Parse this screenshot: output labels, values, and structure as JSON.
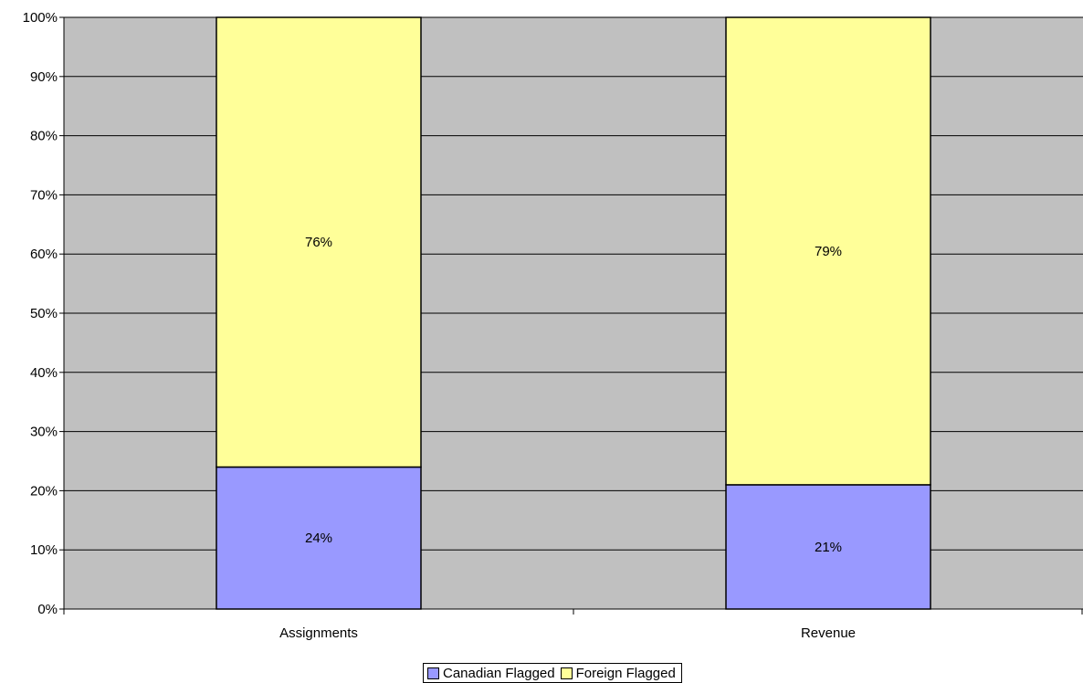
{
  "chart_data": {
    "type": "bar",
    "stacked": true,
    "categories": [
      "Assignments",
      "Revenue"
    ],
    "series": [
      {
        "name": "Canadian Flagged",
        "values": [
          24,
          21
        ],
        "labels": [
          "24%",
          "21%"
        ],
        "color": "#9999ff"
      },
      {
        "name": "Foreign Flagged",
        "values": [
          76,
          79
        ],
        "labels": [
          "76%",
          "79%"
        ],
        "color": "#ffff99"
      }
    ],
    "y_ticks": [
      "0%",
      "10%",
      "20%",
      "30%",
      "40%",
      "50%",
      "60%",
      "70%",
      "80%",
      "90%",
      "100%"
    ],
    "ylim": [
      0,
      100
    ],
    "grid": true,
    "plot_background": "#c0c0c0",
    "legend_position": "bottom"
  }
}
